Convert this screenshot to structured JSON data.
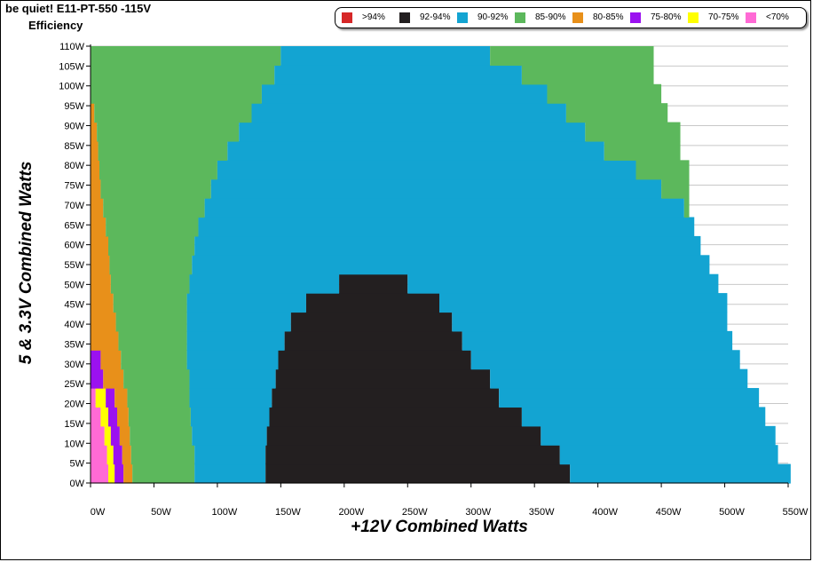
{
  "header": {
    "title": "be quiet! E11-PT-550 -115V",
    "subtitle": "Efficiency"
  },
  "legend": {
    "items": [
      {
        "label": ">94%",
        "color": "#d62728"
      },
      {
        "label": "92-94%",
        "color": "#231f20"
      },
      {
        "label": "90-92%",
        "color": "#13a4d2"
      },
      {
        "label": "85-90%",
        "color": "#5cb85c"
      },
      {
        "label": "80-85%",
        "color": "#e8901a"
      },
      {
        "label": "75-80%",
        "color": "#9b11f0"
      },
      {
        "label": "70-75%",
        "color": "#ffff00"
      },
      {
        "label": "<70%",
        "color": "#ff6ad5"
      }
    ]
  },
  "chart_data": {
    "type": "heatmap",
    "xlabel": "+12V Combined Watts",
    "ylabel": "5 & 3.3V Combined Watts",
    "xlim": [
      0,
      550
    ],
    "ylim": [
      0,
      110
    ],
    "x_ticks": [
      "0W",
      "50W",
      "100W",
      "150W",
      "200W",
      "250W",
      "300W",
      "350W",
      "400W",
      "450W",
      "500W",
      "550W"
    ],
    "y_ticks": [
      "0W",
      "5W",
      "10W",
      "15W",
      "20W",
      "25W",
      "30W",
      "35W",
      "40W",
      "45W",
      "50W",
      "55W",
      "60W",
      "65W",
      "70W",
      "75W",
      "80W",
      "85W",
      "90W",
      "95W",
      "100W",
      "105W",
      "110W"
    ],
    "grid": true,
    "rows": [
      {
        "y": 0,
        "bands": [
          [
            0,
            14,
            "<70%"
          ],
          [
            14,
            19,
            "70-75%"
          ],
          [
            19,
            26,
            "75-80%"
          ],
          [
            26,
            33,
            "80-85%"
          ],
          [
            33,
            82,
            "85-90%"
          ],
          [
            82,
            138,
            "90-92%"
          ],
          [
            138,
            378,
            "92-94%"
          ],
          [
            378,
            552,
            "90-92%"
          ]
        ]
      },
      {
        "y": 5,
        "bands": [
          [
            0,
            13,
            "<70%"
          ],
          [
            13,
            18,
            "70-75%"
          ],
          [
            18,
            25,
            "75-80%"
          ],
          [
            25,
            32,
            "80-85%"
          ],
          [
            32,
            82,
            "85-90%"
          ],
          [
            82,
            138,
            "90-92%"
          ],
          [
            138,
            370,
            "92-94%"
          ],
          [
            370,
            542,
            "90-92%"
          ]
        ]
      },
      {
        "y": 10,
        "bands": [
          [
            0,
            11,
            "<70%"
          ],
          [
            11,
            16,
            "70-75%"
          ],
          [
            16,
            23,
            "75-80%"
          ],
          [
            23,
            31,
            "80-85%"
          ],
          [
            31,
            80,
            "85-90%"
          ],
          [
            80,
            139,
            "90-92%"
          ],
          [
            139,
            355,
            "92-94%"
          ],
          [
            355,
            540,
            "90-92%"
          ]
        ]
      },
      {
        "y": 15,
        "bands": [
          [
            0,
            8,
            "<70%"
          ],
          [
            8,
            14,
            "70-75%"
          ],
          [
            14,
            21,
            "75-80%"
          ],
          [
            21,
            30,
            "80-85%"
          ],
          [
            30,
            79,
            "85-90%"
          ],
          [
            79,
            141,
            "90-92%"
          ],
          [
            141,
            340,
            "92-94%"
          ],
          [
            340,
            532,
            "90-92%"
          ]
        ]
      },
      {
        "y": 20,
        "bands": [
          [
            0,
            4,
            "<70%"
          ],
          [
            4,
            12,
            "70-75%"
          ],
          [
            12,
            19,
            "75-80%"
          ],
          [
            19,
            29,
            "80-85%"
          ],
          [
            29,
            78,
            "85-90%"
          ],
          [
            78,
            143,
            "90-92%"
          ],
          [
            143,
            322,
            "92-94%"
          ],
          [
            322,
            527,
            "90-92%"
          ]
        ]
      },
      {
        "y": 25,
        "bands": [
          [
            0,
            10,
            "75-80%"
          ],
          [
            10,
            26,
            "80-85%"
          ],
          [
            26,
            78,
            "85-90%"
          ],
          [
            78,
            146,
            "90-92%"
          ],
          [
            146,
            315,
            "92-94%"
          ],
          [
            315,
            518,
            "90-92%"
          ]
        ]
      },
      {
        "y": 30,
        "bands": [
          [
            0,
            8,
            "75-80%"
          ],
          [
            8,
            24,
            "80-85%"
          ],
          [
            24,
            76,
            "85-90%"
          ],
          [
            76,
            148,
            "90-92%"
          ],
          [
            148,
            300,
            "92-94%"
          ],
          [
            300,
            512,
            "90-92%"
          ]
        ]
      },
      {
        "y": 35,
        "bands": [
          [
            0,
            22,
            "80-85%"
          ],
          [
            22,
            76,
            "85-90%"
          ],
          [
            76,
            153,
            "90-92%"
          ],
          [
            153,
            293,
            "92-94%"
          ],
          [
            293,
            506,
            "90-92%"
          ]
        ]
      },
      {
        "y": 40,
        "bands": [
          [
            0,
            20,
            "80-85%"
          ],
          [
            20,
            76,
            "85-90%"
          ],
          [
            76,
            158,
            "90-92%"
          ],
          [
            158,
            285,
            "92-94%"
          ],
          [
            285,
            502,
            "90-92%"
          ]
        ]
      },
      {
        "y": 45,
        "bands": [
          [
            0,
            18,
            "80-85%"
          ],
          [
            18,
            76,
            "85-90%"
          ],
          [
            76,
            170,
            "90-92%"
          ],
          [
            170,
            275,
            "92-94%"
          ],
          [
            275,
            502,
            "90-92%"
          ]
        ]
      },
      {
        "y": 50,
        "bands": [
          [
            0,
            16,
            "80-85%"
          ],
          [
            16,
            78,
            "85-90%"
          ],
          [
            78,
            196,
            "90-92%"
          ],
          [
            196,
            250,
            "92-94%"
          ],
          [
            250,
            495,
            "90-92%"
          ]
        ]
      },
      {
        "y": 55,
        "bands": [
          [
            0,
            15,
            "80-85%"
          ],
          [
            15,
            80,
            "85-90%"
          ],
          [
            80,
            488,
            "90-92%"
          ]
        ]
      },
      {
        "y": 60,
        "bands": [
          [
            0,
            14,
            "80-85%"
          ],
          [
            14,
            82,
            "85-90%"
          ],
          [
            82,
            481,
            "90-92%"
          ]
        ]
      },
      {
        "y": 65,
        "bands": [
          [
            0,
            12,
            "80-85%"
          ],
          [
            12,
            85,
            "85-90%"
          ],
          [
            85,
            476,
            "90-92%"
          ]
        ]
      },
      {
        "y": 70,
        "bands": [
          [
            0,
            10,
            "80-85%"
          ],
          [
            10,
            90,
            "85-90%"
          ],
          [
            90,
            468,
            "90-92%"
          ],
          [
            468,
            472,
            "85-90%"
          ]
        ]
      },
      {
        "y": 75,
        "bands": [
          [
            0,
            8,
            "80-85%"
          ],
          [
            8,
            95,
            "85-90%"
          ],
          [
            95,
            450,
            "90-92%"
          ],
          [
            450,
            472,
            "85-90%"
          ]
        ]
      },
      {
        "y": 80,
        "bands": [
          [
            0,
            7,
            "80-85%"
          ],
          [
            7,
            100,
            "85-90%"
          ],
          [
            100,
            430,
            "90-92%"
          ],
          [
            430,
            472,
            "85-90%"
          ]
        ]
      },
      {
        "y": 85,
        "bands": [
          [
            0,
            6,
            "80-85%"
          ],
          [
            6,
            108,
            "85-90%"
          ],
          [
            108,
            405,
            "90-92%"
          ],
          [
            405,
            465,
            "85-90%"
          ]
        ]
      },
      {
        "y": 90,
        "bands": [
          [
            0,
            5,
            "80-85%"
          ],
          [
            5,
            117,
            "85-90%"
          ],
          [
            117,
            390,
            "90-92%"
          ],
          [
            390,
            465,
            "85-90%"
          ]
        ]
      },
      {
        "y": 95,
        "bands": [
          [
            0,
            3,
            "80-85%"
          ],
          [
            3,
            127,
            "85-90%"
          ],
          [
            127,
            375,
            "90-92%"
          ],
          [
            375,
            455,
            "85-90%"
          ]
        ]
      },
      {
        "y": 100,
        "bands": [
          [
            0,
            135,
            "85-90%"
          ],
          [
            135,
            360,
            "90-92%"
          ],
          [
            360,
            450,
            "85-90%"
          ]
        ]
      },
      {
        "y": 105,
        "bands": [
          [
            0,
            145,
            "85-90%"
          ],
          [
            145,
            340,
            "90-92%"
          ],
          [
            340,
            444,
            "85-90%"
          ]
        ]
      },
      {
        "y": 110,
        "bands": [
          [
            0,
            150,
            "85-90%"
          ],
          [
            150,
            315,
            "90-92%"
          ],
          [
            315,
            444,
            "85-90%"
          ]
        ]
      }
    ]
  }
}
